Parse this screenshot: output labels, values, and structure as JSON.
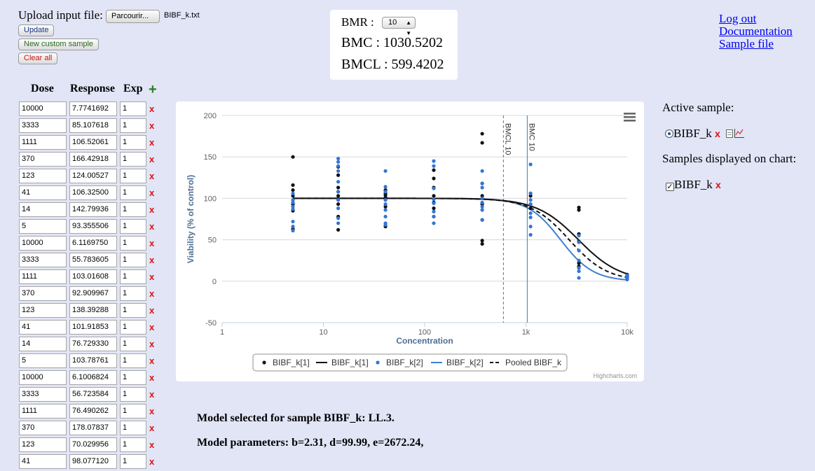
{
  "upload": {
    "label": "Upload input file:",
    "browse_label": "Parcourir...",
    "file_name": "BIBF_k.txt",
    "update_label": "Update",
    "custom_label": "New custom sample",
    "clear_label": "Clear all"
  },
  "bmr": {
    "label": "BMR :",
    "selected": "10",
    "bmc": "BMC : 1030.5202",
    "bmcl": "BMCL : 599.4202"
  },
  "links": {
    "logout": "Log out",
    "documentation": "Documentation",
    "sample_file": "Sample file"
  },
  "table": {
    "headers": {
      "dose": "Dose",
      "response": "Response",
      "exp": "Exp"
    },
    "add_icon": "+",
    "delete_icon": "x",
    "rows": [
      {
        "dose": "10000",
        "response": "7.7741692",
        "exp": "1"
      },
      {
        "dose": "3333",
        "response": "85.107618",
        "exp": "1"
      },
      {
        "dose": "1111",
        "response": "106.52061",
        "exp": "1"
      },
      {
        "dose": "370",
        "response": "166.42918",
        "exp": "1"
      },
      {
        "dose": "123",
        "response": "124.00527",
        "exp": "1"
      },
      {
        "dose": "41",
        "response": "106.32500",
        "exp": "1"
      },
      {
        "dose": "14",
        "response": "142.79936",
        "exp": "1"
      },
      {
        "dose": "5",
        "response": "93.355506",
        "exp": "1"
      },
      {
        "dose": "10000",
        "response": "6.1169750",
        "exp": "1"
      },
      {
        "dose": "3333",
        "response": "55.783605",
        "exp": "1"
      },
      {
        "dose": "1111",
        "response": "103.01608",
        "exp": "1"
      },
      {
        "dose": "370",
        "response": "92.909967",
        "exp": "1"
      },
      {
        "dose": "123",
        "response": "138.39288",
        "exp": "1"
      },
      {
        "dose": "41",
        "response": "101.91853",
        "exp": "1"
      },
      {
        "dose": "14",
        "response": "76.729330",
        "exp": "1"
      },
      {
        "dose": "5",
        "response": "103.78761",
        "exp": "1"
      },
      {
        "dose": "10000",
        "response": "6.1006824",
        "exp": "1"
      },
      {
        "dose": "3333",
        "response": "56.723584",
        "exp": "1"
      },
      {
        "dose": "1111",
        "response": "76.490262",
        "exp": "1"
      },
      {
        "dose": "370",
        "response": "178.07837",
        "exp": "1"
      },
      {
        "dose": "123",
        "response": "70.029956",
        "exp": "1"
      },
      {
        "dose": "41",
        "response": "98.077120",
        "exp": "1"
      }
    ]
  },
  "right_panel": {
    "active_label": "Active sample:",
    "active_sample": "BIBF_k",
    "displayed_label": "Samples displayed on chart:",
    "displayed_sample": "BIBF_k"
  },
  "model": {
    "selected": "Model selected for sample BIBF_k: LL.3.",
    "parameters": "Model parameters: b=2.31, d=99.99, e=2672.24,"
  },
  "chart_data": {
    "type": "scatter",
    "title": "",
    "xlabel": "Concentration",
    "ylabel": "Viability (% of control)",
    "xscale": "log",
    "xlim": [
      1,
      10000
    ],
    "ylim": [
      -50,
      200
    ],
    "x_ticks": [
      "1",
      "10",
      "100",
      "1k",
      "10k"
    ],
    "x_tick_values": [
      1,
      10,
      100,
      1000,
      10000
    ],
    "y_ticks": [
      -50,
      0,
      50,
      100,
      150,
      200
    ],
    "grid": true,
    "legend_position": "bottom",
    "credits": "Highcharts.com",
    "vlines": [
      {
        "label": "BMCL 10",
        "x": 599.4202,
        "style": "dashed"
      },
      {
        "label": "BMC 10",
        "x": 1030.5202,
        "style": "solid"
      }
    ],
    "colors": {
      "black": "#111111",
      "blue": "#3375d6",
      "line_blue": "#3f7fd6"
    },
    "series": [
      {
        "name": "BIBF_k[1]",
        "kind": "scatter",
        "color": "#111111",
        "points": [
          [
            5,
            150
          ],
          [
            5,
            116
          ],
          [
            5,
            110
          ],
          [
            5,
            103
          ],
          [
            5,
            93
          ],
          [
            5,
            85
          ],
          [
            5,
            63
          ],
          [
            14,
            138
          ],
          [
            14,
            128
          ],
          [
            14,
            113
          ],
          [
            14,
            108
          ],
          [
            14,
            103
          ],
          [
            14,
            93
          ],
          [
            14,
            78
          ],
          [
            14,
            62
          ],
          [
            41,
            110
          ],
          [
            41,
            106
          ],
          [
            41,
            104
          ],
          [
            41,
            101
          ],
          [
            41,
            90
          ],
          [
            41,
            66
          ],
          [
            123,
            134
          ],
          [
            123,
            124
          ],
          [
            123,
            113
          ],
          [
            123,
            103
          ],
          [
            123,
            95
          ],
          [
            123,
            88
          ],
          [
            123,
            78
          ],
          [
            370,
            178
          ],
          [
            370,
            167
          ],
          [
            370,
            118
          ],
          [
            370,
            103
          ],
          [
            370,
            93
          ],
          [
            370,
            74
          ],
          [
            370,
            49
          ],
          [
            370,
            45
          ],
          [
            1111,
            106
          ],
          [
            1111,
            103
          ],
          [
            1111,
            93
          ],
          [
            1111,
            88
          ],
          [
            3333,
            89
          ],
          [
            3333,
            86
          ],
          [
            3333,
            57
          ],
          [
            3333,
            48
          ],
          [
            3333,
            22
          ],
          [
            3333,
            18
          ],
          [
            10000,
            8
          ],
          [
            10000,
            6
          ],
          [
            10000,
            5
          ]
        ]
      },
      {
        "name": "BIBF_k[1]",
        "kind": "line",
        "color": "#111111"
      },
      {
        "name": "BIBF_k[2]",
        "kind": "scatter",
        "color": "#3375d6",
        "points": [
          [
            5,
            106
          ],
          [
            5,
            98
          ],
          [
            5,
            95
          ],
          [
            5,
            90
          ],
          [
            5,
            87
          ],
          [
            5,
            72
          ],
          [
            5,
            66
          ],
          [
            5,
            61
          ],
          [
            14,
            148
          ],
          [
            14,
            144
          ],
          [
            14,
            139
          ],
          [
            14,
            133
          ],
          [
            14,
            120
          ],
          [
            14,
            108
          ],
          [
            14,
            98
          ],
          [
            14,
            88
          ],
          [
            14,
            76
          ],
          [
            14,
            70
          ],
          [
            41,
            133
          ],
          [
            41,
            114
          ],
          [
            41,
            108
          ],
          [
            41,
            98
          ],
          [
            41,
            93
          ],
          [
            41,
            86
          ],
          [
            41,
            78
          ],
          [
            41,
            70
          ],
          [
            41,
            68
          ],
          [
            123,
            145
          ],
          [
            123,
            139
          ],
          [
            123,
            112
          ],
          [
            123,
            99
          ],
          [
            123,
            94
          ],
          [
            123,
            84
          ],
          [
            123,
            78
          ],
          [
            123,
            70
          ],
          [
            370,
            133
          ],
          [
            370,
            118
          ],
          [
            370,
            113
          ],
          [
            370,
            100
          ],
          [
            370,
            95
          ],
          [
            370,
            90
          ],
          [
            370,
            86
          ],
          [
            370,
            74
          ],
          [
            1111,
            141
          ],
          [
            1111,
            106
          ],
          [
            1111,
            98
          ],
          [
            1111,
            93
          ],
          [
            1111,
            82
          ],
          [
            1111,
            77
          ],
          [
            1111,
            66
          ],
          [
            1111,
            56
          ],
          [
            3333,
            55
          ],
          [
            3333,
            47
          ],
          [
            3333,
            37
          ],
          [
            3333,
            25
          ],
          [
            3333,
            16
          ],
          [
            3333,
            12
          ],
          [
            3333,
            4
          ],
          [
            10000,
            7
          ],
          [
            10000,
            5
          ],
          [
            10000,
            3
          ],
          [
            10000,
            2
          ]
        ]
      },
      {
        "name": "BIBF_k[2]",
        "kind": "line",
        "color": "#3f7fd6"
      },
      {
        "name": "Pooled BIBF_k",
        "kind": "line",
        "color": "#111111",
        "style": "dashed"
      }
    ],
    "curves": {
      "black": {
        "b": 2.1,
        "d": 100,
        "e": 3300
      },
      "blue": {
        "b": 2.7,
        "d": 100,
        "e": 2200
      },
      "pooled": {
        "b": 2.31,
        "d": 99.99,
        "e": 2672.24
      }
    }
  }
}
